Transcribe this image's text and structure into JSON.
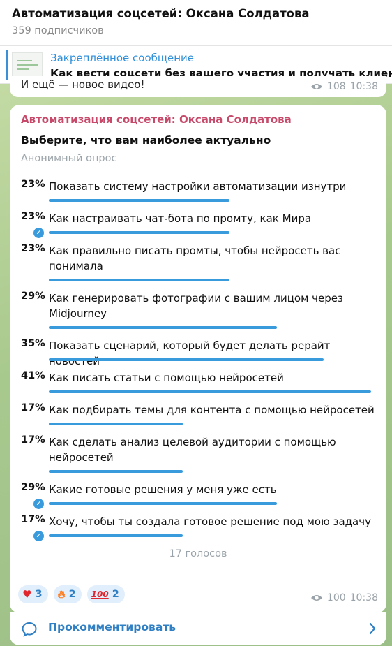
{
  "header": {
    "title": "Автоматизация соцсетей: Оксана Солдатова",
    "subscribers": "359 подписчиков"
  },
  "pinned": {
    "title": "Закреплённое сообщение",
    "text": "Как вести соцсети без вашего участия и получать клиентов"
  },
  "prev_message": {
    "text": "И ещё — новое видео!",
    "views": "108",
    "time": "10:38"
  },
  "poll": {
    "channel": "Автоматизация соцсетей: Оксана Солдатова",
    "question": "Выберите, что вам наиболее актуально",
    "type": "Анонимный опрос",
    "options": [
      {
        "percent": "23%",
        "value": 23,
        "text": "Показать систему настройки автоматизации изнутри",
        "chosen": false
      },
      {
        "percent": "23%",
        "value": 23,
        "text": "Как настраивать чат-бота по промту, как Мира",
        "chosen": true
      },
      {
        "percent": "23%",
        "value": 23,
        "text": "Как правильно писать промты, чтобы нейросеть вас понимала",
        "chosen": false
      },
      {
        "percent": "29%",
        "value": 29,
        "text": "Как генерировать фотографии с вашим лицом через Midjourney",
        "chosen": false
      },
      {
        "percent": "35%",
        "value": 35,
        "text": "Показать сценарий, который будет делать рерайт новостей",
        "chosen": false
      },
      {
        "percent": "41%",
        "value": 41,
        "text": "Как писать статьи с помощью нейросетей",
        "chosen": false
      },
      {
        "percent": "17%",
        "value": 17,
        "text": "Как подбирать темы для контента с помощью нейросетей",
        "chosen": false
      },
      {
        "percent": "17%",
        "value": 17,
        "text": "Как сделать анализ целевой аудитории с помощью нейросетей",
        "chosen": false
      },
      {
        "percent": "29%",
        "value": 29,
        "text": "Какие готовые решения у меня уже есть",
        "chosen": true
      },
      {
        "percent": "17%",
        "value": 17,
        "text": "Хочу, чтобы ты создала готовое решение под мою задачу",
        "chosen": true
      }
    ],
    "votes": "17 голосов",
    "reactions": [
      {
        "emoji": "heart-emoji",
        "count": "3"
      },
      {
        "emoji": "fire-emoji",
        "count": "2"
      },
      {
        "emoji": "hundred-points-emoji",
        "count": "2"
      }
    ],
    "views": "100",
    "time": "10:38"
  },
  "comment": {
    "label": "Прокомментировать"
  },
  "colors": {
    "accent": "#3a9bdc",
    "channel_name": "#c74a6b",
    "link": "#2f7fc4"
  }
}
